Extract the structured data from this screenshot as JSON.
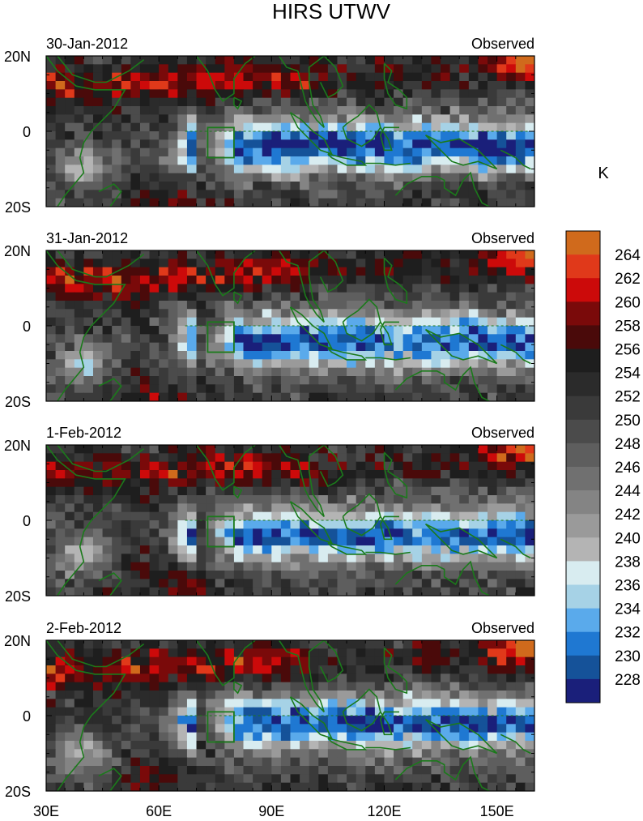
{
  "title": "HIRS UTWV",
  "colorbar_unit": "K",
  "chart_data": {
    "type": "heatmap",
    "title": "HIRS UTWV",
    "unit": "K",
    "x_ticks": [
      "30E",
      "60E",
      "90E",
      "120E",
      "150E"
    ],
    "x_tick_values": [
      30,
      60,
      90,
      120,
      150
    ],
    "xlim": [
      30,
      160
    ],
    "y_ticks": [
      "20N",
      "0",
      "20S"
    ],
    "y_tick_values": [
      20,
      0,
      -20
    ],
    "ylim": [
      -20,
      20
    ],
    "colorbar": {
      "labels": [
        "264",
        "262",
        "260",
        "258",
        "256",
        "254",
        "252",
        "250",
        "248",
        "246",
        "244",
        "242",
        "240",
        "238",
        "236",
        "234",
        "232",
        "230",
        "228"
      ],
      "colors": [
        "#d06a1c",
        "#e0391a",
        "#cc0a0a",
        "#7a0a0a",
        "#4a0a0a",
        "#1e1e1e",
        "#2b2b2b",
        "#3a3a3a",
        "#4b4b4b",
        "#5e5e5e",
        "#707070",
        "#848484",
        "#9a9a9a",
        "#b4b4b4",
        "#d8ecf0",
        "#a6d2e6",
        "#5aaaeb",
        "#1f78d2",
        "#155299",
        "#1a1f7a"
      ]
    },
    "panels": [
      {
        "date": "30-Jan-2012",
        "label": "Observed"
      },
      {
        "date": "31-Jan-2012",
        "label": "Observed"
      },
      {
        "date": "1-Feb-2012",
        "label": "Observed"
      },
      {
        "date": "2-Feb-2012",
        "label": "Observed"
      }
    ],
    "box_region": {
      "lon": [
        73,
        80
      ],
      "lat": [
        -7,
        1
      ]
    }
  }
}
